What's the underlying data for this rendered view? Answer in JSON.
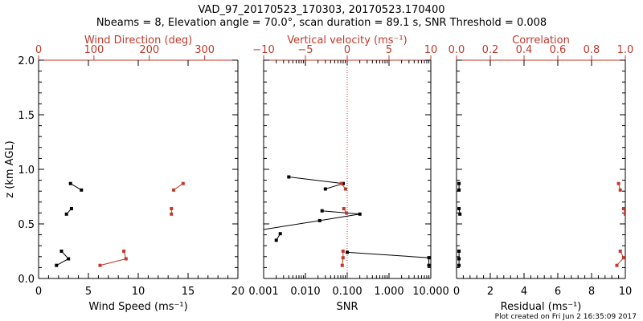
{
  "header": {
    "title_line1": "VAD_97_20170523_170303, 20170523.170400",
    "title_line2": "Nbeams = 8, Elevation angle = 70.0°, scan duration = 89.1 s, SNR Threshold = 0.008"
  },
  "footer": {
    "plot_created": "Plot created on Fri Jun  2 16:35:09 2017"
  },
  "colors": {
    "black": "#000000",
    "red": "#c0392b"
  },
  "chart_data": [
    {
      "type": "line",
      "panel": "wind",
      "ylabel": "z (km AGL)",
      "ylim": [
        0,
        2.0
      ],
      "y_ticks": [
        "0.0",
        "0.5",
        "1.0",
        "1.5",
        "2.0"
      ],
      "bottom_axis": {
        "label": "Wind Speed (ms⁻¹)",
        "range": [
          0,
          20
        ],
        "ticks": [
          "0",
          "5",
          "10",
          "15",
          "20"
        ]
      },
      "top_axis": {
        "label": "Wind Direction (deg)",
        "range": [
          0,
          360
        ],
        "ticks": [
          "0",
          "100",
          "200",
          "300"
        ]
      },
      "series": [
        {
          "axis": "bottom",
          "color": "#000000",
          "segments": [
            [
              [
                3.2,
                0.87
              ],
              [
                4.3,
                0.81
              ]
            ],
            [
              [
                3.3,
                0.64
              ],
              [
                2.8,
                0.59
              ]
            ],
            [
              [
                2.3,
                0.25
              ],
              [
                3.0,
                0.18
              ],
              [
                1.8,
                0.12
              ]
            ]
          ]
        },
        {
          "axis": "top",
          "color": "#c0392b",
          "segments": [
            [
              [
                261,
                0.87
              ],
              [
                244,
                0.81
              ]
            ],
            [
              [
                240,
                0.64
              ],
              [
                240,
                0.59
              ]
            ],
            [
              [
                154,
                0.25
              ],
              [
                158,
                0.18
              ],
              [
                111,
                0.12
              ]
            ]
          ]
        }
      ]
    },
    {
      "type": "line",
      "panel": "snr",
      "ylim": [
        0,
        2.0
      ],
      "bottom_axis": {
        "label": "SNR",
        "scale": "log",
        "range": [
          0.001,
          10.0
        ],
        "ticks": [
          "0.001",
          "0.010",
          "0.100",
          "1.000",
          "10.000"
        ]
      },
      "top_axis": {
        "label": "Vertical velocity (ms⁻¹)",
        "range": [
          -10,
          10
        ],
        "ticks": [
          "−10",
          "−5",
          "0",
          "5",
          "10"
        ]
      },
      "reference_line": {
        "axis": "top",
        "value": 0,
        "style": "dotted",
        "color": "#c0392b"
      },
      "series": [
        {
          "axis": "bottom",
          "color": "#000000",
          "segments": [
            [
              [
                0.004,
                0.93
              ],
              [
                0.08,
                0.87
              ],
              [
                0.03,
                0.82
              ]
            ],
            [
              [
                0.025,
                0.62
              ],
              [
                0.2,
                0.59
              ],
              [
                0.022,
                0.53
              ],
              [
                0.0005,
                0.43
              ]
            ],
            [
              [
                0.0025,
                0.41
              ],
              [
                0.002,
                0.35
              ]
            ],
            [
              [
                0.1,
                0.24
              ],
              [
                9.0,
                0.19
              ],
              [
                9.0,
                0.12
              ]
            ]
          ]
        },
        {
          "axis": "top",
          "color": "#c0392b",
          "segments": [
            [
              [
                -0.7,
                0.87
              ],
              [
                -0.2,
                0.82
              ]
            ],
            [
              [
                -0.4,
                0.64
              ],
              [
                -0.1,
                0.6
              ]
            ],
            [
              [
                -0.5,
                0.25
              ],
              [
                -0.5,
                0.19
              ],
              [
                -0.6,
                0.12
              ]
            ]
          ]
        }
      ]
    },
    {
      "type": "line",
      "panel": "residual",
      "ylim": [
        0,
        2.0
      ],
      "bottom_axis": {
        "label": "Residual (ms⁻¹)",
        "range": [
          0,
          10
        ],
        "ticks": [
          "0",
          "2",
          "4",
          "6",
          "8",
          "10"
        ]
      },
      "top_axis": {
        "label": "Correlation",
        "range": [
          0,
          1.0
        ],
        "ticks": [
          "0.0",
          "0.2",
          "0.4",
          "0.6",
          "0.8",
          "1.0"
        ]
      },
      "series": [
        {
          "axis": "bottom",
          "color": "#000000",
          "segments": [
            [
              [
                0.15,
                0.87
              ],
              [
                0.15,
                0.81
              ]
            ],
            [
              [
                0.15,
                0.64
              ],
              [
                0.2,
                0.59
              ]
            ],
            [
              [
                0.15,
                0.25
              ],
              [
                0.15,
                0.18
              ],
              [
                0.15,
                0.12
              ]
            ]
          ]
        },
        {
          "axis": "top",
          "color": "#c0392b",
          "segments": [
            [
              [
                0.96,
                0.87
              ],
              [
                0.97,
                0.81
              ]
            ],
            [
              [
                0.99,
                0.64
              ],
              [
                1.0,
                0.59
              ]
            ],
            [
              [
                0.97,
                0.25
              ],
              [
                0.99,
                0.19
              ],
              [
                0.95,
                0.12
              ]
            ]
          ]
        }
      ]
    }
  ]
}
